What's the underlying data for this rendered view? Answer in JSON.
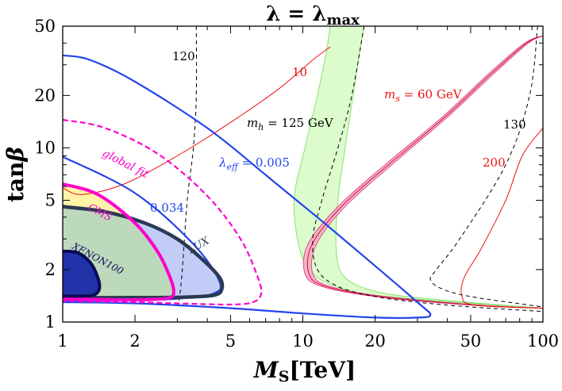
{
  "chart_data": {
    "type": "line",
    "title": "λ = λmax",
    "title_parts": {
      "lhs": "λ",
      "eq": " = ",
      "rhs": "λ",
      "sub": "max"
    },
    "xlabel": {
      "main": "M",
      "sub": "S",
      "unit": "[TeV]"
    },
    "ylabel": {
      "main": "tan",
      "greek": "β"
    },
    "x_scale": "log",
    "y_scale": "log",
    "xlim": [
      1,
      100
    ],
    "ylim": [
      1,
      50
    ],
    "x_ticks": [
      1,
      2,
      5,
      10,
      20,
      50,
      100
    ],
    "y_ticks": [
      1,
      2,
      5,
      10,
      20,
      50
    ],
    "x_tick_labels": [
      "1",
      "2",
      "5",
      "10",
      "20",
      "50",
      "100"
    ],
    "y_tick_labels": [
      "1",
      "2",
      "5",
      "10",
      "20",
      "50"
    ],
    "colors": {
      "mh_contour": "#000000",
      "lambda_eff": "#2244ee",
      "ms_contour": "#ee1111",
      "ms_band": "#f5a9c4",
      "green_band": "#d6fcc4",
      "green_band_edge": "#7fe060",
      "cms": "#ff00cc",
      "cms_fill": "#fff4a8",
      "lux": "#2a3a55",
      "lux_fill": "#c2cdf7",
      "excl_fill": "#bcd9bc",
      "xenon": "#0b0b55",
      "xenon_fill": "#2233aa"
    },
    "contour_labels": {
      "mh_120": "120",
      "mh_125": {
        "pre": "m",
        "sub": "h",
        "post": " = 125 GeV"
      },
      "mh_130": "130",
      "ms_10": "10",
      "ms_60": {
        "pre": "m",
        "sub": "s",
        "post": " = 60 GeV"
      },
      "ms_200": "200",
      "lam_005": {
        "pre": "λ",
        "sub": "eff",
        "post": " = 0.005"
      },
      "lam_034": "0.034",
      "global_fit": "global fit",
      "cms": "CMS",
      "lux": "LUX",
      "xenon": "XENON100"
    },
    "series": [
      {
        "name": "m_h = 120 GeV",
        "x": [
          3.6,
          3.6,
          3.5,
          3.3,
          3.15,
          3.05
        ],
        "y": [
          50,
          20,
          10,
          5,
          2,
          1.3
        ]
      },
      {
        "name": "m_h = 125 GeV",
        "x": [
          18,
          16,
          14,
          12,
          11,
          11.5,
          14,
          20,
          30,
          50,
          100
        ],
        "y": [
          50,
          20,
          10,
          5,
          3,
          2,
          1.6,
          1.4,
          1.3,
          1.22,
          1.15
        ]
      },
      {
        "name": "m_h = 130 GeV",
        "x": [
          95,
          88,
          70,
          45,
          36,
          34,
          38,
          50,
          100
        ],
        "y": [
          50,
          20,
          8,
          3,
          2,
          1.75,
          1.55,
          1.4,
          1.22
        ]
      },
      {
        "name": "lambda_eff = 0.005 (outer)",
        "x": [
          1,
          1.3,
          2,
          4,
          7,
          12,
          20,
          30,
          34,
          30,
          20,
          10,
          5,
          2,
          1
        ],
        "y": [
          34,
          32,
          24,
          13,
          7,
          3.8,
          2.1,
          1.3,
          1.1,
          1.06,
          1.06,
          1.12,
          1.2,
          1.28,
          1.3
        ]
      },
      {
        "name": "lambda_eff = 0.034",
        "x": [
          1,
          2,
          3.5,
          4.5,
          4.2,
          3,
          2,
          1
        ],
        "y": [
          8.9,
          5.5,
          2.8,
          1.7,
          1.45,
          1.36,
          1.33,
          1.33
        ]
      },
      {
        "name": "global fit",
        "x": [
          1,
          1.5,
          2.5,
          4,
          5.5,
          6.5,
          6.7,
          6.2,
          5,
          3,
          2,
          1
        ],
        "y": [
          14.5,
          13,
          9.2,
          5.3,
          3,
          1.8,
          1.45,
          1.3,
          1.26,
          1.28,
          1.3,
          1.32
        ]
      },
      {
        "name": "m_s = 10 GeV",
        "x": [
          1,
          1.2,
          1.8,
          3,
          5,
          8,
          11,
          13
        ],
        "y": [
          5.9,
          5.4,
          6.2,
          9,
          14,
          22,
          32,
          38
        ]
      },
      {
        "name": "m_s = 200 GeV",
        "x": [
          100,
          82,
          70,
          55,
          47,
          46,
          52,
          100
        ],
        "y": [
          13,
          9,
          5,
          2.6,
          1.8,
          1.4,
          1.25,
          1.2
        ]
      }
    ],
    "bands": [
      {
        "name": "green band",
        "low_x": [
          13,
          12.5,
          11.5,
          10.2,
          9.2,
          9.8,
          11.5,
          16,
          25,
          50,
          100
        ],
        "high_x": [
          18,
          17.2,
          16.2,
          15,
          14,
          13.8,
          15,
          20,
          30,
          55,
          100
        ],
        "y": [
          50,
          35,
          20,
          10,
          5,
          2.5,
          1.8,
          1.5,
          1.38,
          1.28,
          1.2
        ]
      },
      {
        "name": "m_s = 60 GeV band",
        "low_x": [
          100,
          84,
          60,
          38,
          22,
          14,
          10.5,
          10.2,
          12,
          20,
          50,
          100
        ],
        "high_x": [
          100,
          87,
          63,
          40,
          23.5,
          15,
          11.4,
          11,
          13,
          22,
          55,
          100
        ],
        "y": [
          44,
          40,
          27,
          15,
          8,
          4.6,
          2.8,
          1.9,
          1.6,
          1.4,
          1.25,
          1.2
        ]
      }
    ],
    "regions": [
      {
        "name": "CMS excluded",
        "boundary_x": [
          1,
          1.4,
          2,
          2.5,
          2.8,
          2.9,
          2.8,
          2.4,
          1.8,
          1
        ],
        "boundary_y": [
          6.2,
          5.4,
          3.7,
          2.5,
          1.8,
          1.5,
          1.38,
          1.35,
          1.34,
          1.36
        ]
      },
      {
        "name": "LUX excluded",
        "boundary_x": [
          1,
          1.5,
          2.2,
          3,
          3.8,
          4.5,
          4.6,
          4.3,
          3.3,
          2,
          1
        ],
        "boundary_y": [
          4.6,
          4.3,
          3.7,
          3,
          2.3,
          1.8,
          1.55,
          1.43,
          1.39,
          1.38,
          1.38
        ]
      },
      {
        "name": "XENON100 excluded",
        "boundary_x": [
          1,
          1.15,
          1.3,
          1.4,
          1.42,
          1.35,
          1.2,
          1
        ],
        "boundary_y": [
          2.55,
          2.5,
          2.2,
          1.8,
          1.55,
          1.43,
          1.41,
          1.41
        ]
      }
    ]
  }
}
